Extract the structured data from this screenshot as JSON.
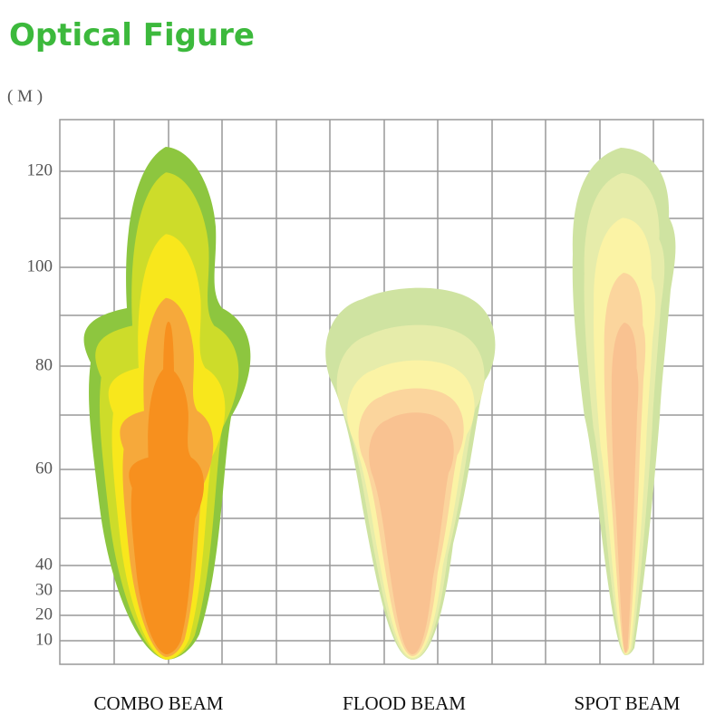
{
  "header": {
    "title": "Optical Figure"
  },
  "axis": {
    "unit": "( M )",
    "ticks": [
      "120",
      "100",
      "80",
      "60",
      "40",
      "30",
      "20",
      "10"
    ]
  },
  "beams": [
    {
      "label": "COMBO BEAM"
    },
    {
      "label": "FLOOD BEAM"
    },
    {
      "label": "SPOT BEAM"
    }
  ]
}
